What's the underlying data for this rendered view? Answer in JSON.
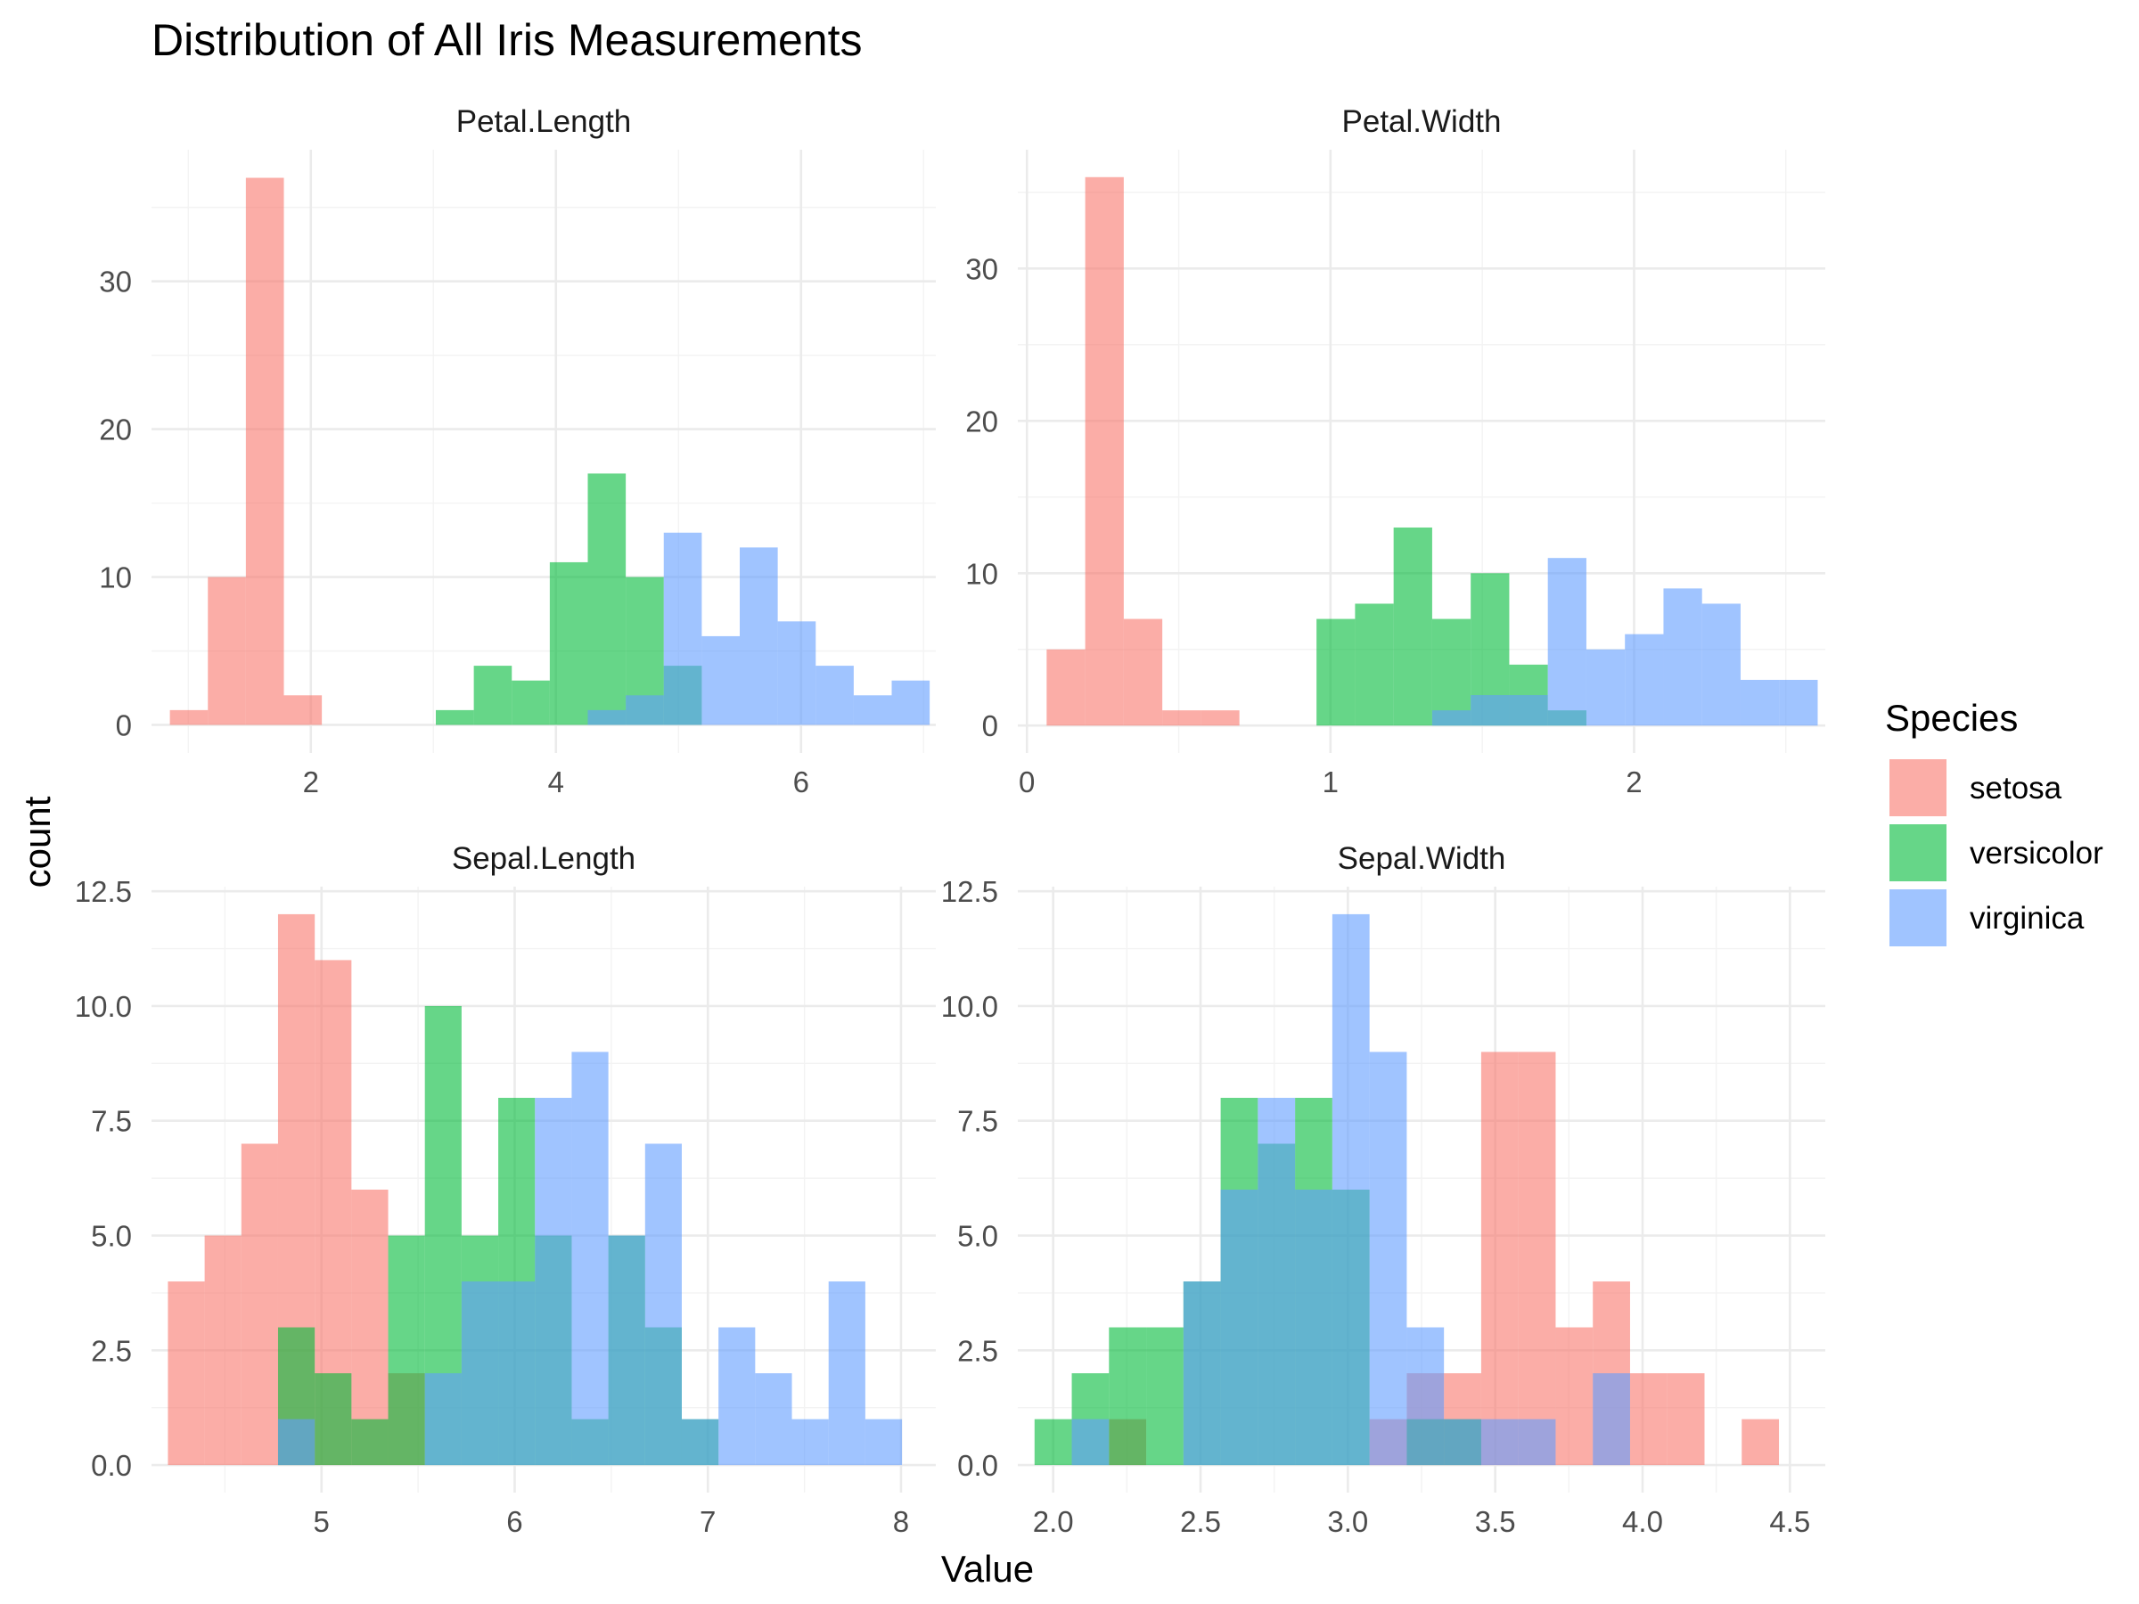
{
  "chart_data": {
    "type": "bar",
    "title": "Distribution of All Iris Measurements",
    "xlabel": "Value",
    "ylabel": "count",
    "legend": {
      "title": "Species",
      "placement": "right",
      "entries": [
        {
          "name": "setosa",
          "color": "#F8766D"
        },
        {
          "name": "versicolor",
          "color": "#00BA38"
        },
        {
          "name": "virginica",
          "color": "#619CFF"
        }
      ]
    },
    "bar_alpha": 0.6,
    "grid": true,
    "panels": [
      {
        "name": "Petal.Length",
        "xlim": [
          0.7,
          7.1
        ],
        "ylim": [
          -1.9,
          38.9
        ],
        "xticks": [
          2,
          4,
          6
        ],
        "xtick_labels": [
          "2",
          "4",
          "6"
        ],
        "yticks": [
          0,
          10,
          20,
          30
        ],
        "ytick_labels": [
          "0",
          "10",
          "20",
          "30"
        ],
        "bin_start": 0.85,
        "bin_width": 0.31,
        "series": [
          {
            "name": "setosa",
            "counts": [
              1,
              10,
              37,
              2,
              0,
              0,
              0,
              0,
              0,
              0,
              0,
              0,
              0,
              0,
              0,
              0,
              0,
              0,
              0,
              0
            ]
          },
          {
            "name": "versicolor",
            "counts": [
              0,
              0,
              0,
              0,
              0,
              0,
              0,
              1,
              4,
              3,
              11,
              17,
              10,
              4,
              0,
              0,
              0,
              0,
              0,
              0
            ]
          },
          {
            "name": "virginica",
            "counts": [
              0,
              0,
              0,
              0,
              0,
              0,
              0,
              0,
              0,
              0,
              0,
              1,
              2,
              13,
              6,
              12,
              7,
              4,
              2,
              3
            ]
          }
        ]
      },
      {
        "name": "Petal.Width",
        "xlim": [
          -0.03,
          2.63
        ],
        "ylim": [
          -1.8,
          37.8
        ],
        "xticks": [
          0,
          1,
          2
        ],
        "xtick_labels": [
          "0",
          "1",
          "2"
        ],
        "yticks": [
          0,
          10,
          20,
          30
        ],
        "ytick_labels": [
          "0",
          "10",
          "20",
          "30"
        ],
        "bin_start": 0.065,
        "bin_width": 0.127,
        "series": [
          {
            "name": "setosa",
            "counts": [
              5,
              36,
              7,
              1,
              1,
              0,
              0,
              0,
              0,
              0,
              0,
              0,
              0,
              0,
              0,
              0,
              0,
              0,
              0,
              0
            ]
          },
          {
            "name": "versicolor",
            "counts": [
              0,
              0,
              0,
              0,
              0,
              0,
              0,
              7,
              8,
              13,
              7,
              10,
              4,
              1,
              0,
              0,
              0,
              0,
              0,
              0
            ]
          },
          {
            "name": "virginica",
            "counts": [
              0,
              0,
              0,
              0,
              0,
              0,
              0,
              0,
              0,
              0,
              1,
              2,
              2,
              11,
              5,
              6,
              9,
              8,
              3,
              3
            ]
          }
        ]
      },
      {
        "name": "Sepal.Length",
        "xlim": [
          4.12,
          8.18
        ],
        "ylim": [
          -0.6,
          12.6
        ],
        "xticks": [
          5,
          6,
          7,
          8
        ],
        "xtick_labels": [
          "5",
          "6",
          "7",
          "8"
        ],
        "yticks": [
          0,
          2.5,
          5,
          7.5,
          10,
          12.5
        ],
        "ytick_labels": [
          "0.0",
          "2.5",
          "5.0",
          "7.5",
          "10.0",
          "12.5"
        ],
        "bin_start": 4.205,
        "bin_width": 0.19,
        "series": [
          {
            "name": "setosa",
            "counts": [
              4,
              5,
              7,
              12,
              11,
              6,
              2,
              0,
              0,
              0,
              0,
              0,
              0,
              0,
              0,
              0,
              0,
              0,
              0,
              0
            ]
          },
          {
            "name": "versicolor",
            "counts": [
              0,
              0,
              0,
              3,
              2,
              1,
              5,
              10,
              5,
              8,
              5,
              1,
              5,
              3,
              1,
              0,
              0,
              0,
              0,
              0
            ]
          },
          {
            "name": "virginica",
            "counts": [
              0,
              0,
              0,
              1,
              0,
              0,
              0,
              2,
              4,
              4,
              8,
              9,
              5,
              7,
              1,
              3,
              2,
              1,
              4,
              1
            ]
          }
        ]
      },
      {
        "name": "Sepal.Width",
        "xlim": [
          1.88,
          4.62
        ],
        "ylim": [
          -0.6,
          12.6
        ],
        "xticks": [
          2.0,
          2.5,
          3.0,
          3.5,
          4.0,
          4.5
        ],
        "xtick_labels": [
          "2.0",
          "2.5",
          "3.0",
          "3.5",
          "4.0",
          "4.5"
        ],
        "bin_start": 1.9368,
        "bin_width": 0.1263,
        "yticks": [
          0,
          2.5,
          5,
          7.5,
          10,
          12.5
        ],
        "ytick_labels": [
          "0.0",
          "2.5",
          "5.0",
          "7.5",
          "10.0",
          "12.5"
        ],
        "series": [
          {
            "name": "setosa",
            "counts": [
              0,
              0,
              1,
              0,
              0,
              0,
              0,
              0,
              0,
              1,
              2,
              2,
              9,
              9,
              3,
              4,
              2,
              2,
              0,
              1
            ]
          },
          {
            "name": "versicolor",
            "counts": [
              1,
              2,
              3,
              3,
              4,
              8,
              7,
              8,
              6,
              0,
              1,
              1,
              0,
              0,
              0,
              0,
              0,
              0,
              0,
              0
            ]
          },
          {
            "name": "virginica",
            "counts": [
              0,
              1,
              0,
              0,
              4,
              6,
              8,
              6,
              12,
              9,
              3,
              1,
              1,
              1,
              0,
              2,
              0,
              0,
              0,
              0
            ]
          }
        ]
      }
    ]
  }
}
